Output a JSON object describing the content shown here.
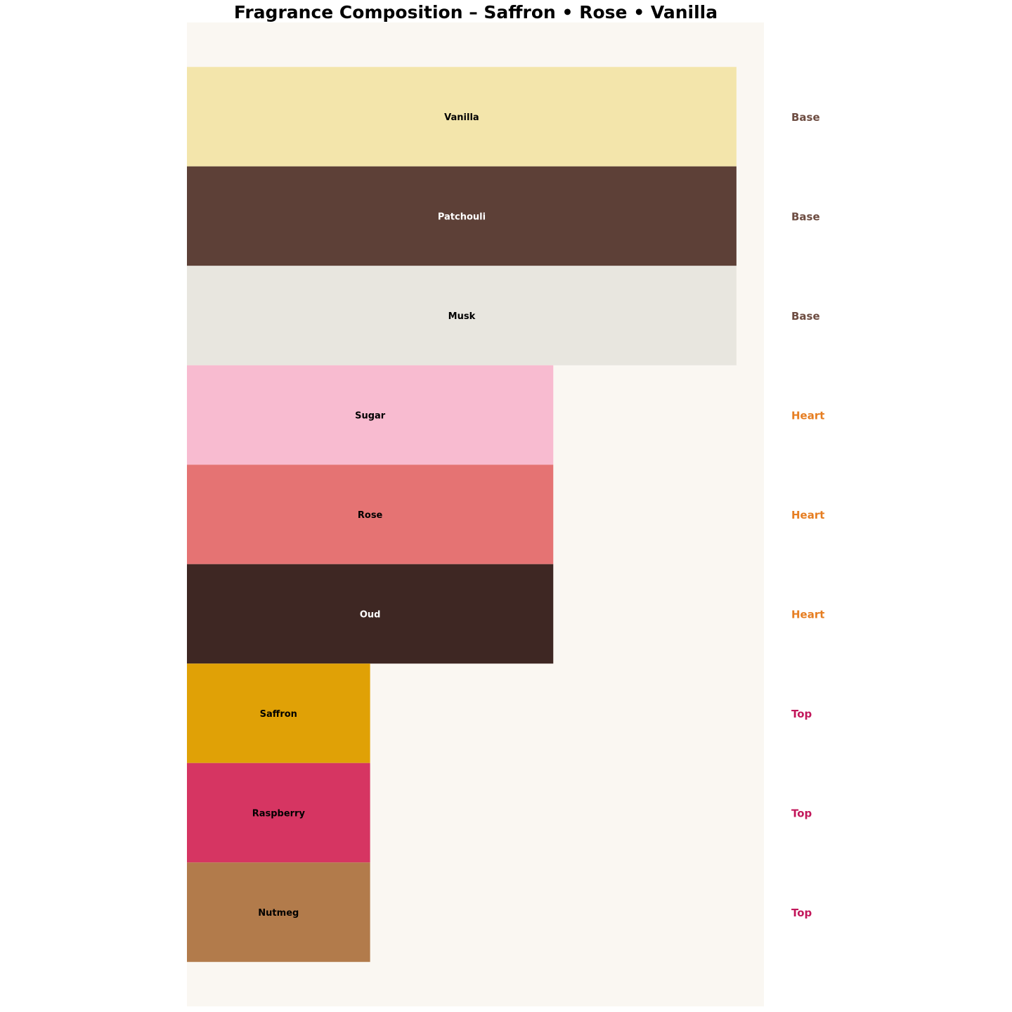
{
  "chart_data": {
    "type": "bar",
    "orientation": "horizontal",
    "title": "Fragrance Composition – Saffron • Rose • Vanilla",
    "xlabel": "",
    "ylabel": "",
    "xlim": [
      0,
      3.15
    ],
    "grid": false,
    "axes_visible": false,
    "background_color": "#faf7f2",
    "bars": [
      {
        "label": "Vanilla",
        "value": 3,
        "tier": "Base",
        "color": "#f3e5ab",
        "text_color": "#000000"
      },
      {
        "label": "Patchouli",
        "value": 3,
        "tier": "Base",
        "color": "#5d4037",
        "text_color": "#ffffff"
      },
      {
        "label": "Musk",
        "value": 3,
        "tier": "Base",
        "color": "#e8e6df",
        "text_color": "#000000"
      },
      {
        "label": "Sugar",
        "value": 2,
        "tier": "Heart",
        "color": "#f8bbd0",
        "text_color": "#000000"
      },
      {
        "label": "Rose",
        "value": 2,
        "tier": "Heart",
        "color": "#e57373",
        "text_color": "#000000"
      },
      {
        "label": "Oud",
        "value": 2,
        "tier": "Heart",
        "color": "#3e2723",
        "text_color": "#ffffff"
      },
      {
        "label": "Saffron",
        "value": 1,
        "tier": "Top",
        "color": "#e0a106",
        "text_color": "#000000"
      },
      {
        "label": "Raspberry",
        "value": 1,
        "tier": "Top",
        "color": "#d63562",
        "text_color": "#000000"
      },
      {
        "label": "Nutmeg",
        "value": 1,
        "tier": "Top",
        "color": "#b27b4b",
        "text_color": "#000000"
      }
    ],
    "tier_colors": {
      "Base": "#6d4c41",
      "Heart": "#e67e22",
      "Top": "#c2185b"
    }
  }
}
